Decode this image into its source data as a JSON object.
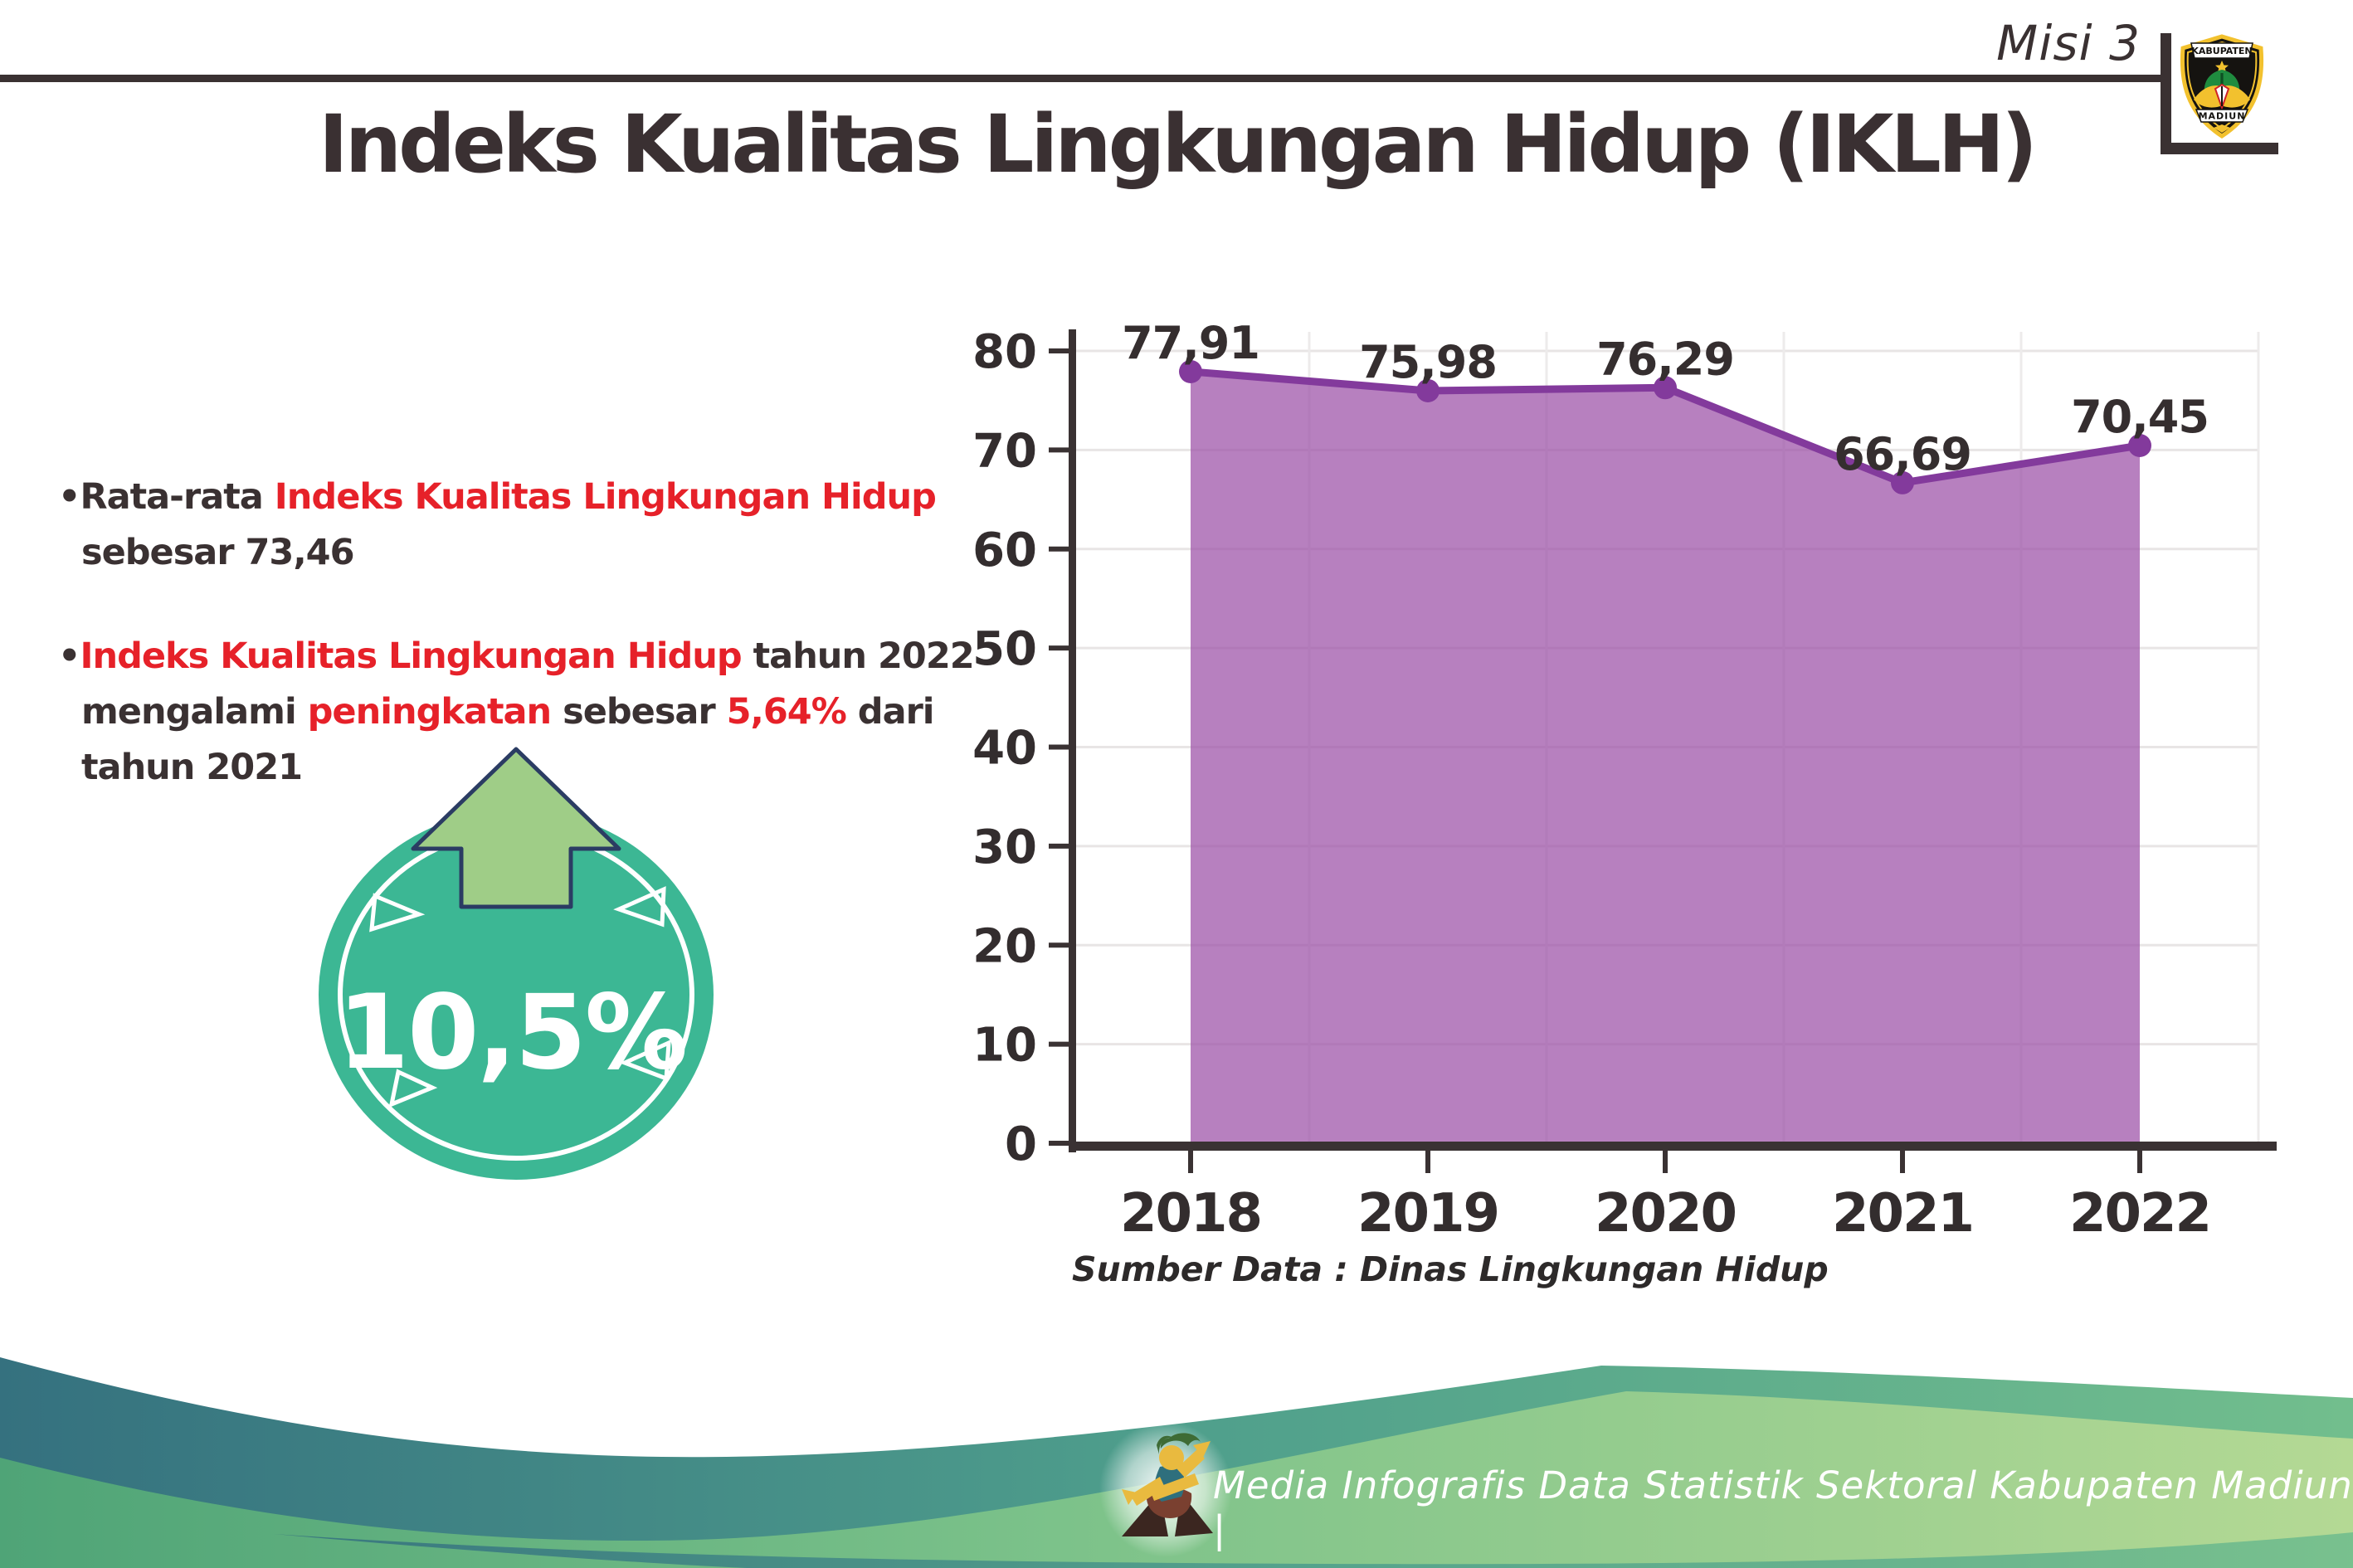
{
  "header": {
    "misi": "Misi 3",
    "logo": {
      "top_banner": "KABUPATEN",
      "bottom_banner": "MADIUN"
    }
  },
  "title": "Indeks Kualitas Lingkungan Hidup (IKLH)",
  "bullets": [
    {
      "lines": [
        [
          {
            "text": "Rata-rata ",
            "red": false
          },
          {
            "text": "Indeks Kualitas Lingkungan Hidup",
            "red": true
          }
        ],
        [
          {
            "text": "sebesar 73,46",
            "red": false
          }
        ]
      ]
    },
    {
      "lines": [
        [
          {
            "text": "Indeks Kualitas Lingkungan Hidup",
            "red": true
          },
          {
            "text": " tahun 2022",
            "red": false
          }
        ],
        [
          {
            "text": "mengalami ",
            "red": false
          },
          {
            "text": "peningkatan",
            "red": true
          },
          {
            "text": " sebesar ",
            "red": false
          },
          {
            "text": "5,64%",
            "red": true
          },
          {
            "text": " dari",
            "red": false
          }
        ],
        [
          {
            "text": "tahun 2021",
            "red": false
          }
        ]
      ]
    }
  ],
  "badge": {
    "value": "10,5%"
  },
  "chart_data": {
    "type": "area",
    "title": "Indeks Kualitas Lingkungan Hidup (IKLH)",
    "categories": [
      "2018",
      "2019",
      "2020",
      "2021",
      "2022"
    ],
    "values": [
      77.91,
      75.98,
      76.29,
      66.69,
      70.45
    ],
    "value_labels": [
      "77,91",
      "75,98",
      "76,29",
      "66,69",
      "70,45"
    ],
    "xlabel": "",
    "ylabel": "",
    "ylim": [
      0,
      80
    ],
    "yticks": [
      0,
      10,
      20,
      30,
      40,
      50,
      60,
      70,
      80
    ],
    "grid": true,
    "legend": false,
    "source": "Sumber Data : Dinas Lingkungan Hidup"
  },
  "footer": {
    "credit": "Media Infografis Data Statistik Sektoral Kabupaten Madiun |"
  },
  "colors": {
    "text_dark": "#3a3132",
    "text_red": "#e62129",
    "area_fill": "#9b4fa6",
    "line": "#833a9c",
    "grid": "#e8e5e5",
    "grid_v": "#edebeb",
    "axis": "#3a3233",
    "badge_teal": "#3cb794",
    "arrow_green": "#9fcd87",
    "arrow_outline": "#2b3c63",
    "footer_teal_left": "#35717f",
    "footer_teal_right": "#72be8d",
    "footer_green_left": "#4fa477",
    "footer_green_right": "#b4d994"
  }
}
